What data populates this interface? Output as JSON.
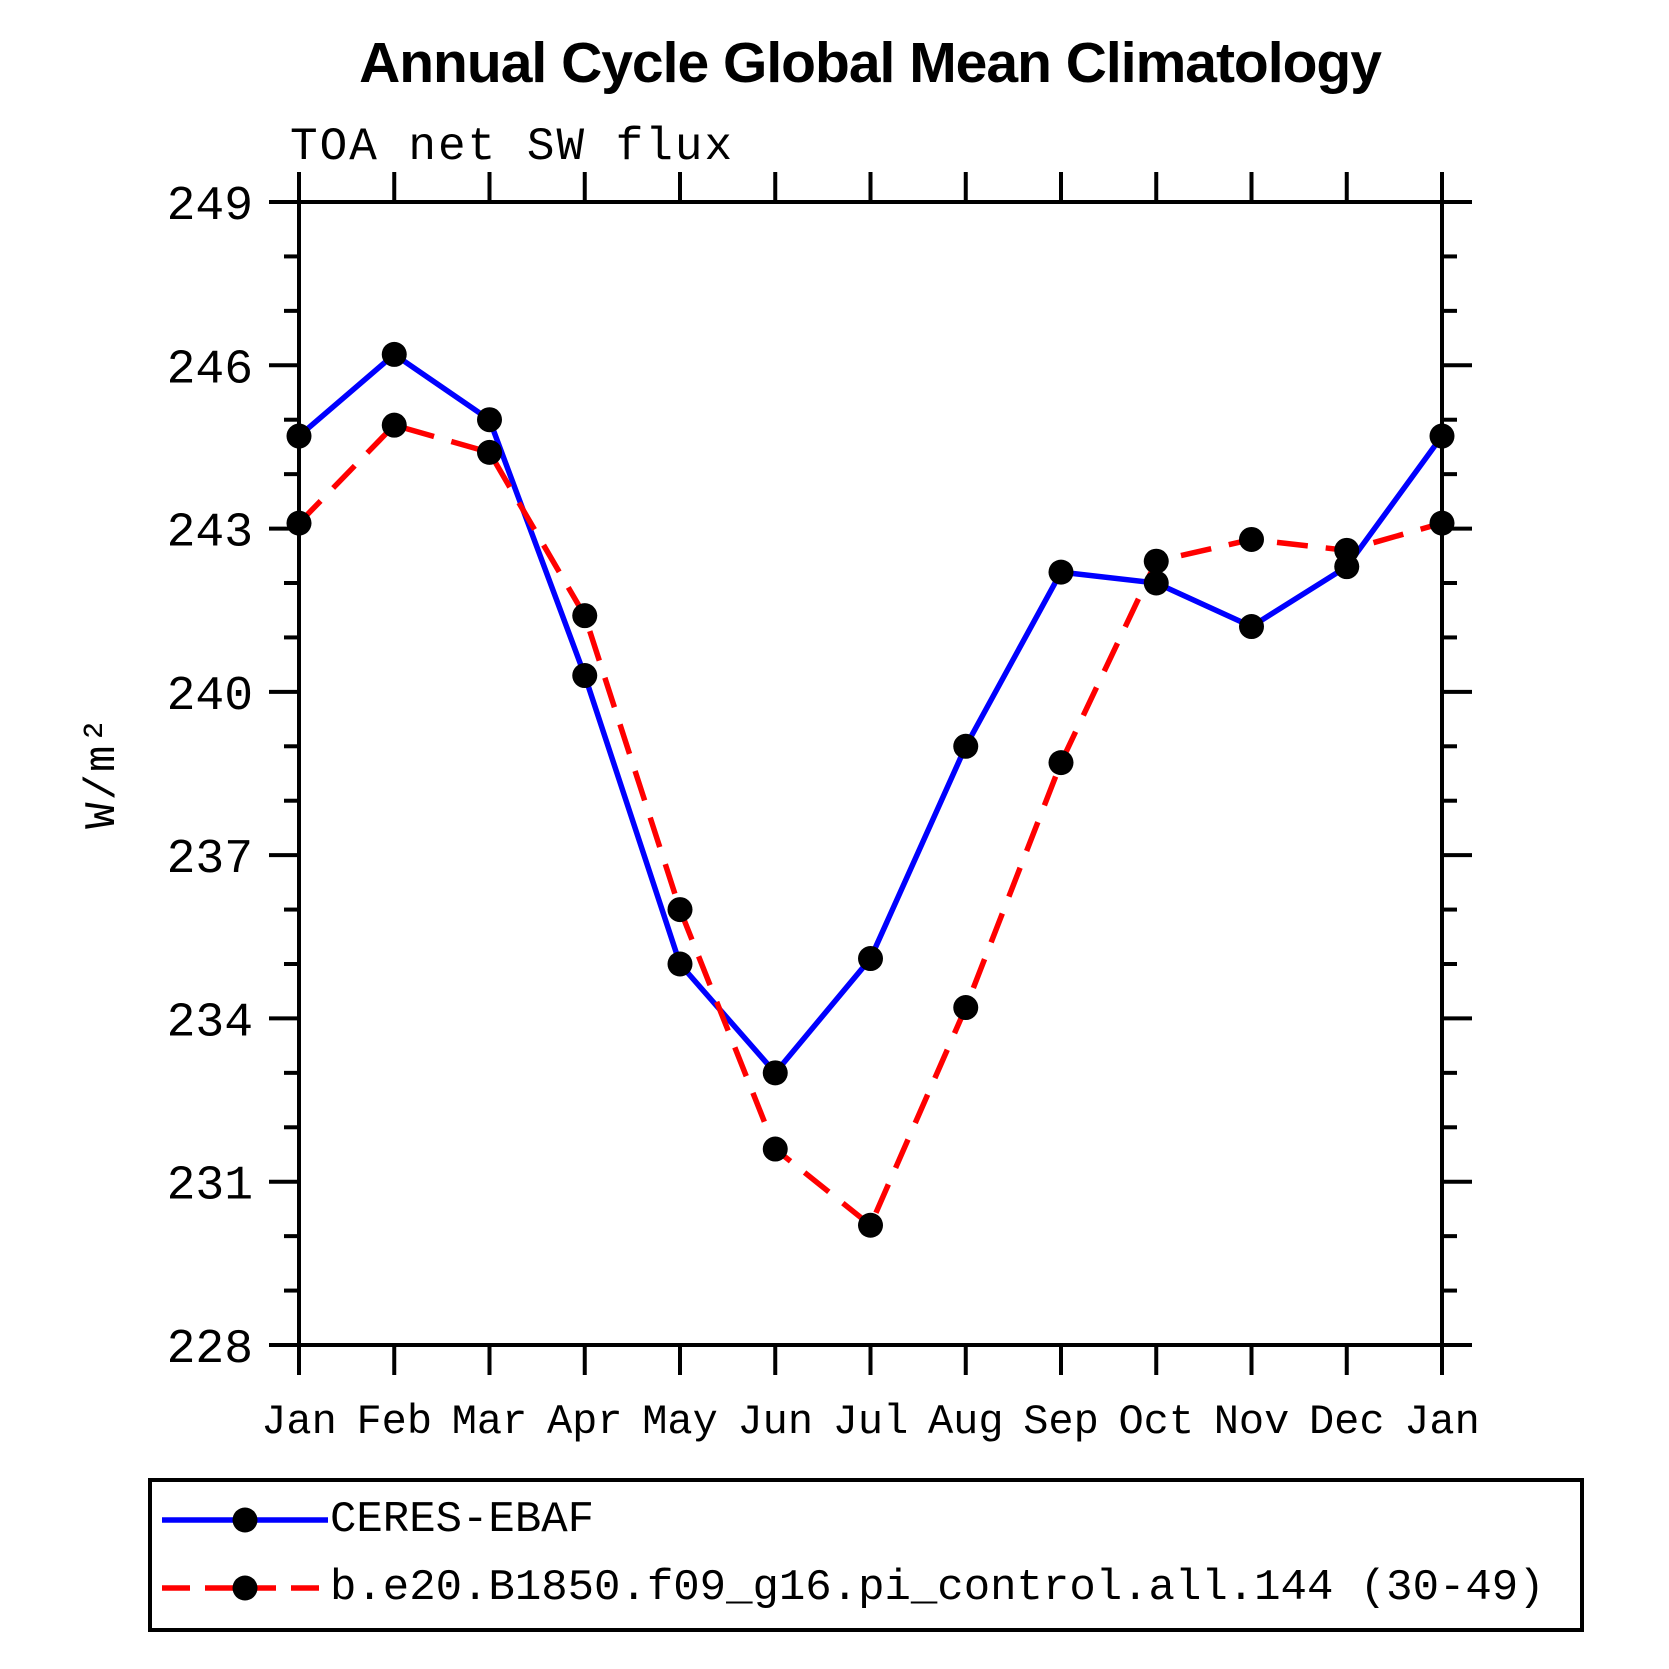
{
  "chart_data": {
    "type": "line",
    "title": "Annual Cycle Global Mean Climatology",
    "subtitle": "TOA net SW flux",
    "xlabel": "",
    "ylabel": "W/m²",
    "categories": [
      "Jan",
      "Feb",
      "Mar",
      "Apr",
      "May",
      "Jun",
      "Jul",
      "Aug",
      "Sep",
      "Oct",
      "Nov",
      "Dec",
      "Jan"
    ],
    "ylim": [
      228,
      249
    ],
    "ytick_major": [
      228,
      231,
      234,
      237,
      240,
      243,
      246,
      249
    ],
    "ytick_minor_step": 1,
    "grid": false,
    "legend_position": "bottom-box",
    "marker_color": "#000000",
    "axis_color": "#000000",
    "series": [
      {
        "name": "CERES-EBAF",
        "color": "#0000ff",
        "style": "solid",
        "marker": "circle",
        "values": [
          244.7,
          246.2,
          245.0,
          240.3,
          235.0,
          233.0,
          235.1,
          239.0,
          242.2,
          242.0,
          241.2,
          242.3,
          244.7
        ]
      },
      {
        "name": "b.e20.B1850.f09_g16.pi_control.all.144 (30-49)",
        "color": "#ff0000",
        "style": "dashed",
        "marker": "circle",
        "values": [
          243.1,
          244.9,
          244.4,
          241.4,
          236.0,
          231.6,
          230.2,
          234.2,
          238.7,
          242.4,
          242.8,
          242.6,
          243.1
        ]
      }
    ]
  }
}
